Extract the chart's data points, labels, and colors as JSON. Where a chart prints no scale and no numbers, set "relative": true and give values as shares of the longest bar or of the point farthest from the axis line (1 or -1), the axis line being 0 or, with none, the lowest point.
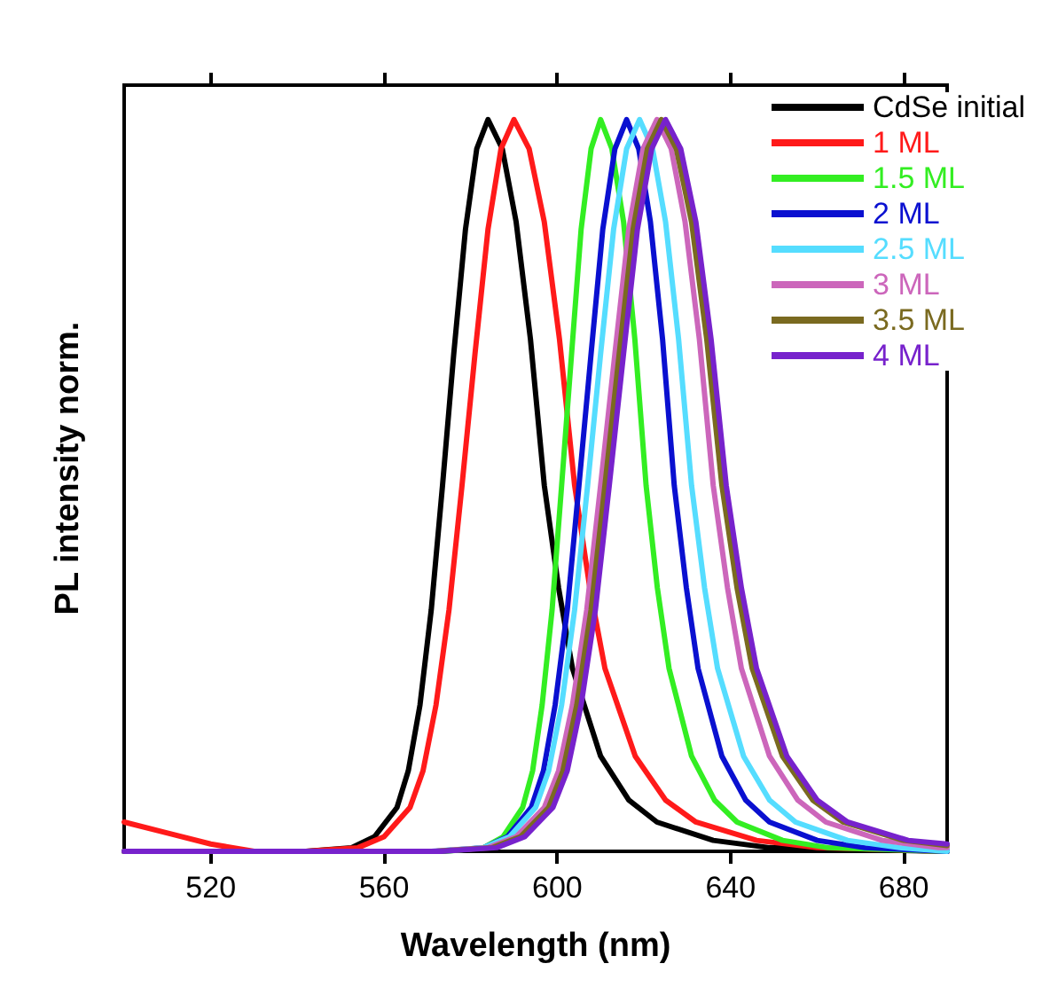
{
  "chart_data": {
    "type": "line",
    "xlabel": "Wavelength (nm)",
    "ylabel": "PL intensity norm.",
    "relative": true,
    "xlim": [
      500,
      690
    ],
    "xticks": [
      520,
      560,
      600,
      640,
      680
    ],
    "legend": "top right",
    "grid": false,
    "marker": "none",
    "line_style": "solid",
    "series": [
      {
        "name": "CdSe initial",
        "color": "#000000",
        "x": [
          500,
          542,
          552.5,
          557.8,
          563,
          565.6,
          568.3,
          570.9,
          573.5,
          576.1,
          578.8,
          581.4,
          584,
          587.3,
          590.5,
          593.8,
          597,
          600.3,
          603.5,
          610,
          616.5,
          623,
          636,
          649,
          690
        ],
        "values": [
          0,
          0,
          0.005,
          0.02,
          0.06,
          0.11,
          0.2,
          0.33,
          0.5,
          0.68,
          0.85,
          0.96,
          1,
          0.96,
          0.86,
          0.7,
          0.5,
          0.36,
          0.25,
          0.13,
          0.07,
          0.04,
          0.015,
          0.005,
          0
        ]
      },
      {
        "name": "1 ML",
        "color": "#ff1a1a",
        "x": [
          500,
          510,
          520,
          530,
          542,
          554,
          560,
          566,
          569,
          572,
          575,
          578,
          581,
          584,
          587,
          590,
          593.5,
          597,
          600.5,
          604,
          607.5,
          611,
          618,
          625,
          632,
          646,
          660,
          690
        ],
        "values": [
          0.04,
          0.025,
          0.01,
          0,
          0,
          0.005,
          0.02,
          0.06,
          0.11,
          0.2,
          0.33,
          0.5,
          0.68,
          0.85,
          0.96,
          1,
          0.96,
          0.86,
          0.7,
          0.5,
          0.36,
          0.25,
          0.13,
          0.07,
          0.04,
          0.015,
          0.005,
          0
        ]
      },
      {
        "name": "1.5 ML",
        "color": "#33ee22",
        "x": [
          500,
          574,
          583,
          587.5,
          592,
          594.3,
          596.5,
          598.8,
          601,
          603.3,
          605.5,
          607.8,
          610,
          612.6,
          615.3,
          617.9,
          620.5,
          623.1,
          625.8,
          631,
          636.3,
          641.5,
          652,
          662.5,
          690
        ],
        "values": [
          0,
          0,
          0.005,
          0.02,
          0.06,
          0.11,
          0.2,
          0.33,
          0.5,
          0.68,
          0.85,
          0.96,
          1,
          0.96,
          0.86,
          0.7,
          0.5,
          0.36,
          0.25,
          0.13,
          0.07,
          0.04,
          0.015,
          0.005,
          0
        ]
      },
      {
        "name": "2 ML",
        "color": "#0a10d0",
        "x": [
          500,
          572,
          583,
          588.5,
          594,
          596.8,
          599.5,
          602.3,
          605,
          607.8,
          610.5,
          613.3,
          616,
          618.8,
          621.5,
          624.3,
          627,
          629.8,
          632.5,
          638,
          643.5,
          649,
          660,
          671,
          690
        ],
        "values": [
          0,
          0,
          0.005,
          0.02,
          0.06,
          0.11,
          0.2,
          0.33,
          0.5,
          0.68,
          0.85,
          0.96,
          1,
          0.96,
          0.86,
          0.7,
          0.5,
          0.36,
          0.25,
          0.13,
          0.07,
          0.04,
          0.015,
          0.005,
          0
        ]
      },
      {
        "name": "2.5 ML",
        "color": "#55ddff",
        "x": [
          500,
          571,
          583,
          589,
          595,
          598,
          601,
          604,
          607,
          610,
          613,
          616,
          619,
          622,
          625,
          628,
          631,
          634,
          637,
          643,
          649,
          655,
          667,
          679,
          690
        ],
        "values": [
          0,
          0,
          0.005,
          0.02,
          0.06,
          0.11,
          0.2,
          0.33,
          0.5,
          0.68,
          0.85,
          0.96,
          1,
          0.96,
          0.86,
          0.7,
          0.5,
          0.36,
          0.25,
          0.13,
          0.07,
          0.04,
          0.015,
          0.005,
          0
        ]
      },
      {
        "name": "3 ML",
        "color": "#cc66bb",
        "x": [
          500,
          571,
          584,
          590.5,
          597,
          600.3,
          603.5,
          606.8,
          610,
          613.3,
          616.5,
          619.8,
          623,
          626.3,
          629.5,
          632.8,
          636,
          639.3,
          642.5,
          649,
          655.5,
          662,
          675,
          688,
          690
        ],
        "values": [
          0,
          0,
          0.005,
          0.02,
          0.06,
          0.11,
          0.2,
          0.33,
          0.5,
          0.68,
          0.85,
          0.96,
          1,
          0.96,
          0.86,
          0.7,
          0.5,
          0.36,
          0.25,
          0.13,
          0.07,
          0.04,
          0.015,
          0.005,
          0.005
        ]
      },
      {
        "name": "3.5 ML",
        "color": "#7a6a20",
        "x": [
          500,
          572,
          585,
          591.5,
          598,
          601.3,
          604.5,
          607.8,
          611,
          614.3,
          617.5,
          620.8,
          624,
          627.5,
          631,
          634.5,
          638,
          641.5,
          645,
          652,
          659,
          666,
          680,
          690
        ],
        "values": [
          0,
          0,
          0.005,
          0.02,
          0.06,
          0.11,
          0.2,
          0.33,
          0.5,
          0.68,
          0.85,
          0.96,
          1,
          0.96,
          0.86,
          0.7,
          0.5,
          0.36,
          0.25,
          0.13,
          0.07,
          0.04,
          0.015,
          0.008
        ]
      },
      {
        "name": "4 ML",
        "color": "#7722cc",
        "x": [
          500,
          573,
          586,
          592.5,
          599,
          602.3,
          605.5,
          608.8,
          612,
          615.3,
          618.5,
          621.8,
          625,
          628.5,
          632,
          635.5,
          639,
          642.5,
          646,
          653,
          660,
          667,
          681,
          690
        ],
        "values": [
          0,
          0,
          0.005,
          0.02,
          0.06,
          0.11,
          0.2,
          0.33,
          0.5,
          0.68,
          0.85,
          0.96,
          1,
          0.96,
          0.86,
          0.7,
          0.5,
          0.36,
          0.25,
          0.13,
          0.07,
          0.04,
          0.015,
          0.01
        ]
      }
    ]
  }
}
